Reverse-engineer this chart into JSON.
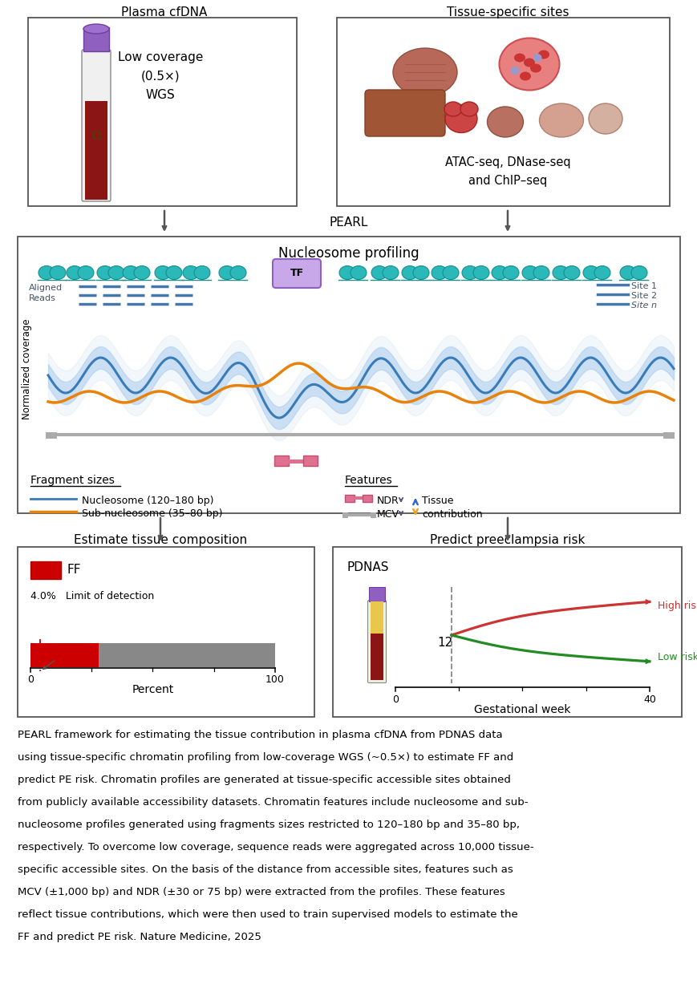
{
  "bg_color": "#ffffff",
  "top_left_title": "Plasma cfDNA",
  "top_right_title": "Tissue-specific sites",
  "top_left_text": "Low coverage\n(0.5×)\nWGS",
  "top_right_text": "ATAC-seq, DNase-seq\nand ChIP–seq",
  "pearl_label": "PEARL",
  "nucleosome_title": "Nucleosome profiling",
  "ylabel_nucleosome": "Normalized coverage",
  "tf_label": "TF",
  "aligned_reads_label": "Aligned\nReads",
  "site1_label": "Site 1",
  "site2_label": "Site 2",
  "siten_label": "Site n",
  "fragment_sizes_label": "Fragment sizes",
  "features_label": "Features",
  "nucleosome_legend": "Nucleosome (120–180 bp)",
  "subnucleosome_legend": "Sub-nucleosome (35–80 bp)",
  "ndr_label": "NDR",
  "mcv_label": "MCV",
  "tissue_contribution_label": "Tissue\ncontribution",
  "nucleosome_color": "#4a90c4",
  "subnucleosome_color": "#e8820a",
  "nucleosome_fill_color": "#b8d4e8",
  "tf_bg_color": "#c8a8e8",
  "nucleosome_color_icon": "#2ab8b8",
  "bottom_left_title": "Estimate tissue composition",
  "bottom_right_title": "Predict preeclampsia risk",
  "ff_label": "FF",
  "ff_color": "#cc0000",
  "bar_gray_color": "#888888",
  "percent_label": "Percent",
  "lod_label": "4.0%   Limit of detection",
  "gestational_week_label": "Gestational week",
  "pdnas_label": "PDNAS",
  "high_risk_label": "High risk",
  "low_risk_label": "Low risk",
  "high_risk_color": "#cc3333",
  "low_risk_color": "#228b22",
  "week12_label": "12",
  "caption_line1": "PEARL framework for estimating the tissue contribution in plasma cfDNA from PDNAS data",
  "caption_line2": "using tissue-specific chromatin profiling from low-coverage WGS (~0.5×) to estimate FF and",
  "caption_line3": "predict PE risk. Chromatin profiles are generated at tissue-specific accessible sites obtained",
  "caption_line4": "from publicly available accessibility datasets. Chromatin features include nucleosome and sub-",
  "caption_line5": "nucleosome profiles generated using fragments sizes restricted to 120–180 bp and 35–80 bp,",
  "caption_line6": "respectively. To overcome low coverage, sequence reads were aggregated across 10,000 tissue-",
  "caption_line7": "specific accessible sites. On the basis of the distance from accessible sites, features such as",
  "caption_line8": "MCV (±1,000 bp) and NDR (±30 or 75 bp) were extracted from the profiles. These features",
  "caption_line9": "reflect tissue contributions, which were then used to train supervised models to estimate the",
  "caption_line10": "FF and predict PE risk. Nature Medicine, 2025"
}
